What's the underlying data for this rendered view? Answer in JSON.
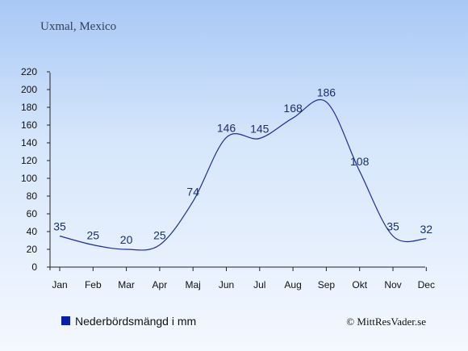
{
  "chart_data": {
    "type": "line",
    "title": "Uxmal, Mexico",
    "categories": [
      "Jan",
      "Feb",
      "Mar",
      "Apr",
      "Maj",
      "Jun",
      "Jul",
      "Aug",
      "Sep",
      "Okt",
      "Nov",
      "Dec"
    ],
    "series": [
      {
        "name": "Nederbördsmängd i mm",
        "values": [
          35,
          25,
          20,
          25,
          74,
          146,
          145,
          168,
          186,
          108,
          35,
          32
        ]
      }
    ],
    "ylim": [
      0,
      220
    ],
    "yticks": [
      0,
      20,
      40,
      60,
      80,
      100,
      120,
      140,
      160,
      180,
      200,
      220
    ],
    "grid": false,
    "legend_position": "bottom-left",
    "colors": {
      "line": "#1f2f9a",
      "legend_marker": "#0a1fa8"
    }
  },
  "copyright": "© MittResVader.se"
}
